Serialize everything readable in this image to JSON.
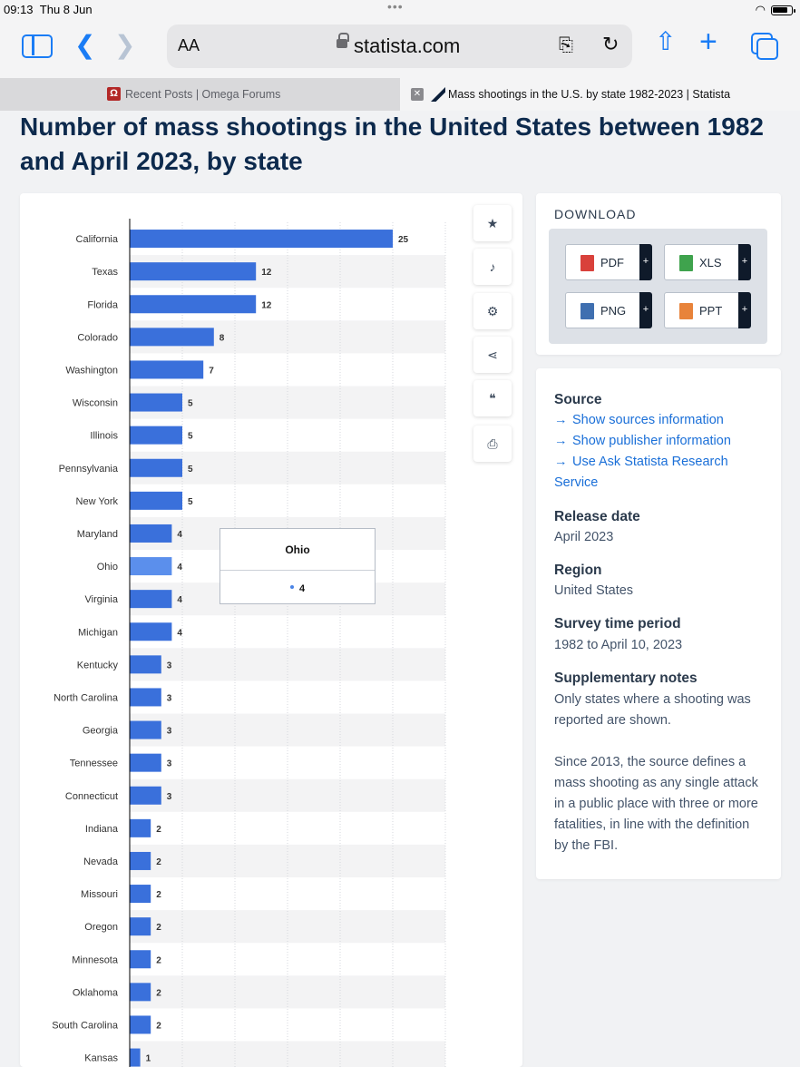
{
  "status_bar": {
    "time": "09:13",
    "date": "Thu 8 Jun"
  },
  "browser": {
    "text_size_label": "AA",
    "host": "statista.com",
    "tabs": [
      {
        "title": "Recent Posts | Omega Forums",
        "active": false
      },
      {
        "title": "Mass shootings in the U.S. by state 1982-2023 | Statista",
        "active": true
      }
    ]
  },
  "page": {
    "title": "Number of mass shootings in the United States between 1982 and April 2023, by state"
  },
  "chart_data": {
    "type": "bar",
    "orientation": "horizontal",
    "title": "Number of mass shootings in the United States between 1982 and April 2023, by state",
    "categories": [
      "California",
      "Texas",
      "Florida",
      "Colorado",
      "Washington",
      "Wisconsin",
      "Illinois",
      "Pennsylvania",
      "New York",
      "Maryland",
      "Ohio",
      "Virginia",
      "Michigan",
      "Kentucky",
      "North Carolina",
      "Georgia",
      "Tennessee",
      "Connecticut",
      "Indiana",
      "Nevada",
      "Missouri",
      "Oregon",
      "Minnesota",
      "Oklahoma",
      "South Carolina",
      "Kansas"
    ],
    "values": [
      25,
      12,
      12,
      8,
      7,
      5,
      5,
      5,
      5,
      4,
      4,
      4,
      4,
      3,
      3,
      3,
      3,
      3,
      2,
      2,
      2,
      2,
      2,
      2,
      2,
      1
    ],
    "xlim": [
      0,
      30
    ],
    "highlighted": "Ohio",
    "bar_color": "#3a70db",
    "highlight_color": "#5b8fec",
    "grid": true
  },
  "tooltip": {
    "category": "Ohio",
    "value": "4"
  },
  "toolbar": {
    "icons": [
      "star-icon",
      "bell-icon",
      "gear-icon",
      "share-icon",
      "quote-icon",
      "print-icon"
    ]
  },
  "download": {
    "title": "DOWNLOAD",
    "buttons": [
      {
        "label": "PDF",
        "color": "#d9413b"
      },
      {
        "label": "XLS",
        "color": "#3fa34d"
      },
      {
        "label": "PNG",
        "color": "#3f6fb0"
      },
      {
        "label": "PPT",
        "color": "#e8833a"
      }
    ],
    "plus": "+"
  },
  "details": {
    "source_heading": "Source",
    "links": [
      "Show sources information",
      "Show publisher information",
      "Use Ask Statista Research Service"
    ],
    "release_heading": "Release date",
    "release_value": "April 2023",
    "region_heading": "Region",
    "region_value": "United States",
    "period_heading": "Survey time period",
    "period_value": "1982 to April 10, 2023",
    "notes_heading": "Supplementary notes",
    "notes_1": "Only states where a shooting was reported are shown.",
    "notes_2": "Since 2013, the source defines a mass shooting as any single attack in a public place with three or more fatalities, in line with the definition by the FBI."
  }
}
